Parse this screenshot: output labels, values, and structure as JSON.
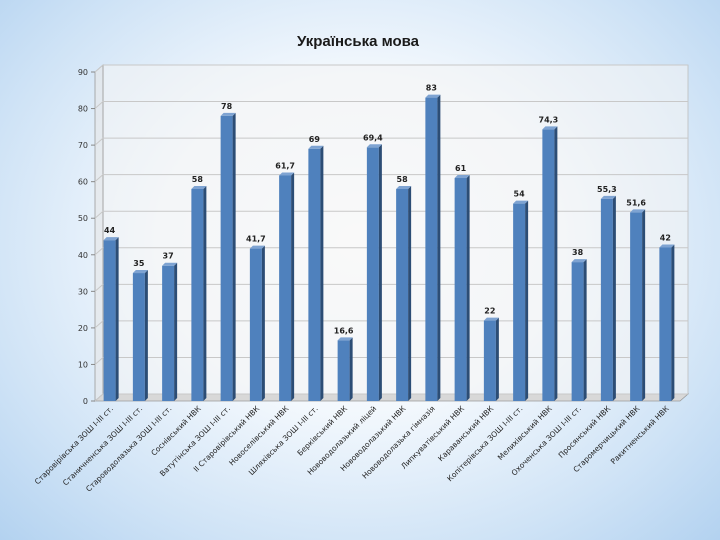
{
  "chart_data": {
    "type": "bar",
    "title": "Українська мова",
    "categories": [
      "Старовірівська ЗОШ І-ІІІ ст.",
      "Станичненська ЗОШ І-ІІІ ст.",
      "Староводолазька ЗОШ І-ІІІ ст.",
      "Соснівський НВК",
      "Ватутінська ЗОШ І-ІІІ ст.",
      "ІІ Старовірівський НВК",
      "Новоселівський НВК",
      "Шляхівська ЗОШ І-ІІІ ст.",
      "Берківський НВК",
      "Нововодолазький ліцей",
      "Нововодолазький НВК",
      "Нововодолазька гімназія",
      "Липкуватівський НВК",
      "Караванський НВК",
      "Копітерівська ЗОШ І-ІІІ ст.",
      "Мелихівський НВК",
      "Охоченська ЗОШ І-ІІІ ст.",
      "Просянський НВК",
      "Старомерчицький НВК",
      "Ракитненський НВК"
    ],
    "values": [
      44,
      35,
      37,
      58,
      78,
      41.7,
      61.7,
      69,
      16.6,
      69.4,
      58,
      83,
      61,
      22,
      54,
      74.3,
      38,
      55.3,
      51.6,
      42
    ],
    "value_labels": [
      "44",
      "35",
      "37",
      "58",
      "78",
      "41,7",
      "61,7",
      "69",
      "16,6",
      "69,4",
      "58",
      "83",
      "61",
      "22",
      "54",
      "74,3",
      "38",
      "55,3",
      "51,6",
      "42"
    ],
    "yticks": [
      "0",
      "10",
      "20",
      "30",
      "40",
      "50",
      "60",
      "70",
      "80",
      "90"
    ],
    "ylim": [
      0,
      90
    ],
    "grid": true,
    "legend": "none",
    "colors": {
      "bar_front": "#4f81bd",
      "bar_side": "#2c4d75",
      "bar_top": "#7ea3d2",
      "grid": "#c8c8c8",
      "wall": "#f4f4f4"
    }
  }
}
